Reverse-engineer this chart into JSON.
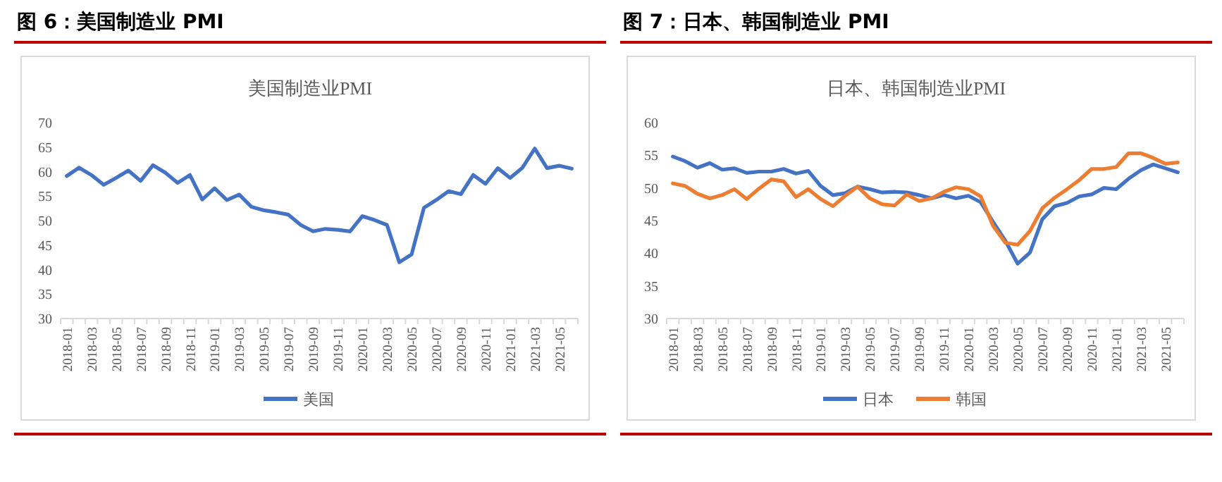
{
  "chart_data": [
    {
      "type": "line",
      "title": "图 6：美国制造业 PMI",
      "subtitle": "美国制造业PMI",
      "categories": [
        "2018-01",
        null,
        "2018-03",
        null,
        "2018-05",
        null,
        "2018-07",
        null,
        "2018-09",
        null,
        "2018-11",
        null,
        "2019-01",
        null,
        "2019-03",
        null,
        "2019-05",
        null,
        "2019-07",
        null,
        "2019-09",
        null,
        "2019-11",
        null,
        "2020-01",
        null,
        "2020-03",
        null,
        "2020-05",
        null,
        "2020-07",
        null,
        "2020-09",
        null,
        "2020-11",
        null,
        "2021-01",
        null,
        "2021-03",
        null,
        "2021-05",
        null
      ],
      "series": [
        {
          "name": "美国",
          "color": "#4472c4",
          "values": [
            59.1,
            60.8,
            59.3,
            57.3,
            58.7,
            60.2,
            58.1,
            61.3,
            59.8,
            57.7,
            59.3,
            54.3,
            56.6,
            54.2,
            55.3,
            52.8,
            52.1,
            51.7,
            51.2,
            49.1,
            47.8,
            48.3,
            48.1,
            47.8,
            50.9,
            50.1,
            49.1,
            41.5,
            43.1,
            52.6,
            54.2,
            56.0,
            55.4,
            59.3,
            57.5,
            60.7,
            58.7,
            60.8,
            64.7,
            60.7,
            61.2,
            60.6
          ]
        }
      ],
      "ylim": [
        30,
        70
      ],
      "yticks": [
        30,
        35,
        40,
        45,
        50,
        55,
        60,
        65,
        70
      ],
      "grid": false,
      "legend": "bottom"
    },
    {
      "type": "line",
      "title": "图 7：日本、韩国制造业 PMI",
      "subtitle": "日本、韩国制造业PMI",
      "categories": [
        "2018-01",
        null,
        "2018-03",
        null,
        "2018-05",
        null,
        "2018-07",
        null,
        "2018-09",
        null,
        "2018-11",
        null,
        "2019-01",
        null,
        "2019-03",
        null,
        "2019-05",
        null,
        "2019-07",
        null,
        "2019-09",
        null,
        "2019-11",
        null,
        "2020-01",
        null,
        "2020-03",
        null,
        "2020-05",
        null,
        "2020-07",
        null,
        "2020-09",
        null,
        "2020-11",
        null,
        "2021-01",
        null,
        "2021-03",
        null,
        "2021-05",
        null
      ],
      "series": [
        {
          "name": "日本",
          "color": "#4472c4",
          "values": [
            54.8,
            54.1,
            53.1,
            53.8,
            52.8,
            53.0,
            52.3,
            52.5,
            52.5,
            52.9,
            52.2,
            52.6,
            50.3,
            48.9,
            49.2,
            50.2,
            49.8,
            49.3,
            49.4,
            49.3,
            48.9,
            48.4,
            48.9,
            48.4,
            48.8,
            47.8,
            44.8,
            41.9,
            38.4,
            40.1,
            45.2,
            47.2,
            47.7,
            48.7,
            49.0,
            50.0,
            49.8,
            51.4,
            52.7,
            53.6,
            53.0,
            52.4
          ]
        },
        {
          "name": "韩国",
          "color": "#ed7d31",
          "values": [
            50.7,
            50.3,
            49.1,
            48.4,
            48.9,
            49.8,
            48.3,
            49.9,
            51.3,
            51.0,
            48.6,
            49.8,
            48.3,
            47.2,
            48.8,
            50.2,
            48.4,
            47.5,
            47.3,
            49.0,
            48.0,
            48.4,
            49.4,
            50.1,
            49.8,
            48.7,
            44.2,
            41.6,
            41.3,
            43.4,
            46.9,
            48.5,
            49.8,
            51.2,
            52.9,
            52.9,
            53.2,
            55.3,
            55.3,
            54.6,
            53.7,
            53.9
          ]
        }
      ],
      "ylim": [
        30,
        60
      ],
      "yticks": [
        30,
        35,
        40,
        45,
        50,
        55,
        60
      ],
      "grid": false,
      "legend": "bottom"
    }
  ]
}
